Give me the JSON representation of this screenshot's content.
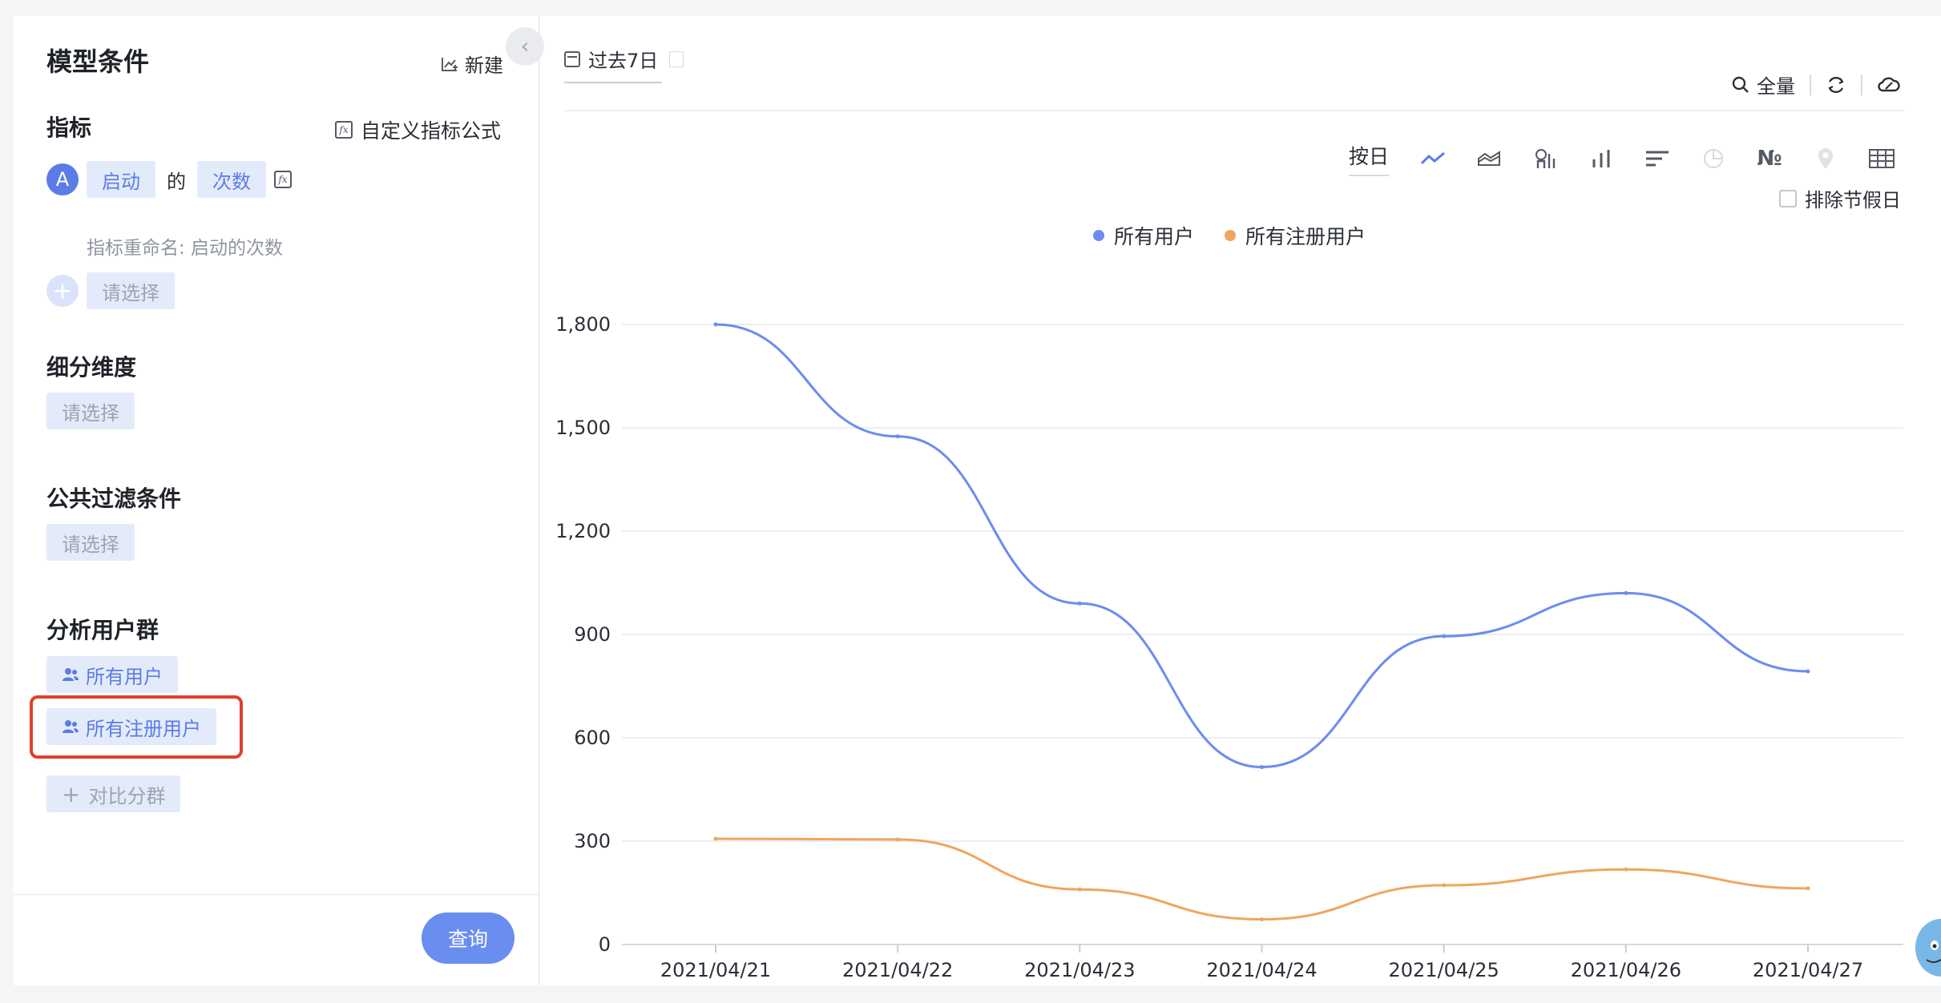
{
  "left_panel": {
    "title": "模型条件",
    "new_label": "新建",
    "metrics": {
      "title": "指标",
      "custom_formula": "自定义指标公式",
      "badge": "A",
      "event": "启动",
      "connector": "的",
      "measure": "次数",
      "rename": "指标重命名: 启动的次数",
      "add_placeholder": "请选择"
    },
    "breakdown": {
      "title": "细分维度",
      "placeholder": "请选择"
    },
    "filter": {
      "title": "公共过滤条件",
      "placeholder": "请选择"
    },
    "user_groups": {
      "title": "分析用户群",
      "items": [
        "所有用户",
        "所有注册用户"
      ],
      "compare": "对比分群"
    },
    "query_button": "查询"
  },
  "right_panel": {
    "date_range": "过去7日",
    "search_scope": "全量",
    "granularity": "按日",
    "exclude_holiday": "排除节假日",
    "chart_type_icons": [
      "line-chart-icon",
      "area-chart-icon",
      "funnel-chart-icon",
      "bar-chart-icon",
      "horizontal-bar-icon",
      "pie-chart-icon",
      "number-icon",
      "map-icon",
      "table-icon"
    ]
  },
  "colors": {
    "series_all": "#6b8cf0",
    "series_registered": "#f0a55e",
    "accent": "#5b7ce6",
    "highlight": "#e0402c"
  },
  "chart_data": {
    "type": "line",
    "x": [
      "2021/04/21",
      "2021/04/22",
      "2021/04/23",
      "2021/04/24",
      "2021/04/25",
      "2021/04/26",
      "2021/04/27"
    ],
    "series": [
      {
        "name": "所有用户",
        "values": [
          1800,
          1475,
          990,
          515,
          895,
          1020,
          793
        ],
        "color": "#6b8cf0"
      },
      {
        "name": "所有注册用户",
        "values": [
          307,
          305,
          160,
          73,
          172,
          218,
          163
        ],
        "color": "#f0a55e"
      }
    ],
    "yticks": [
      "0",
      "300",
      "600",
      "900",
      "1,200",
      "1,500",
      "1,800"
    ],
    "ylim": [
      0,
      1800
    ],
    "grid": true,
    "legend": "top-center",
    "smooth": true
  }
}
